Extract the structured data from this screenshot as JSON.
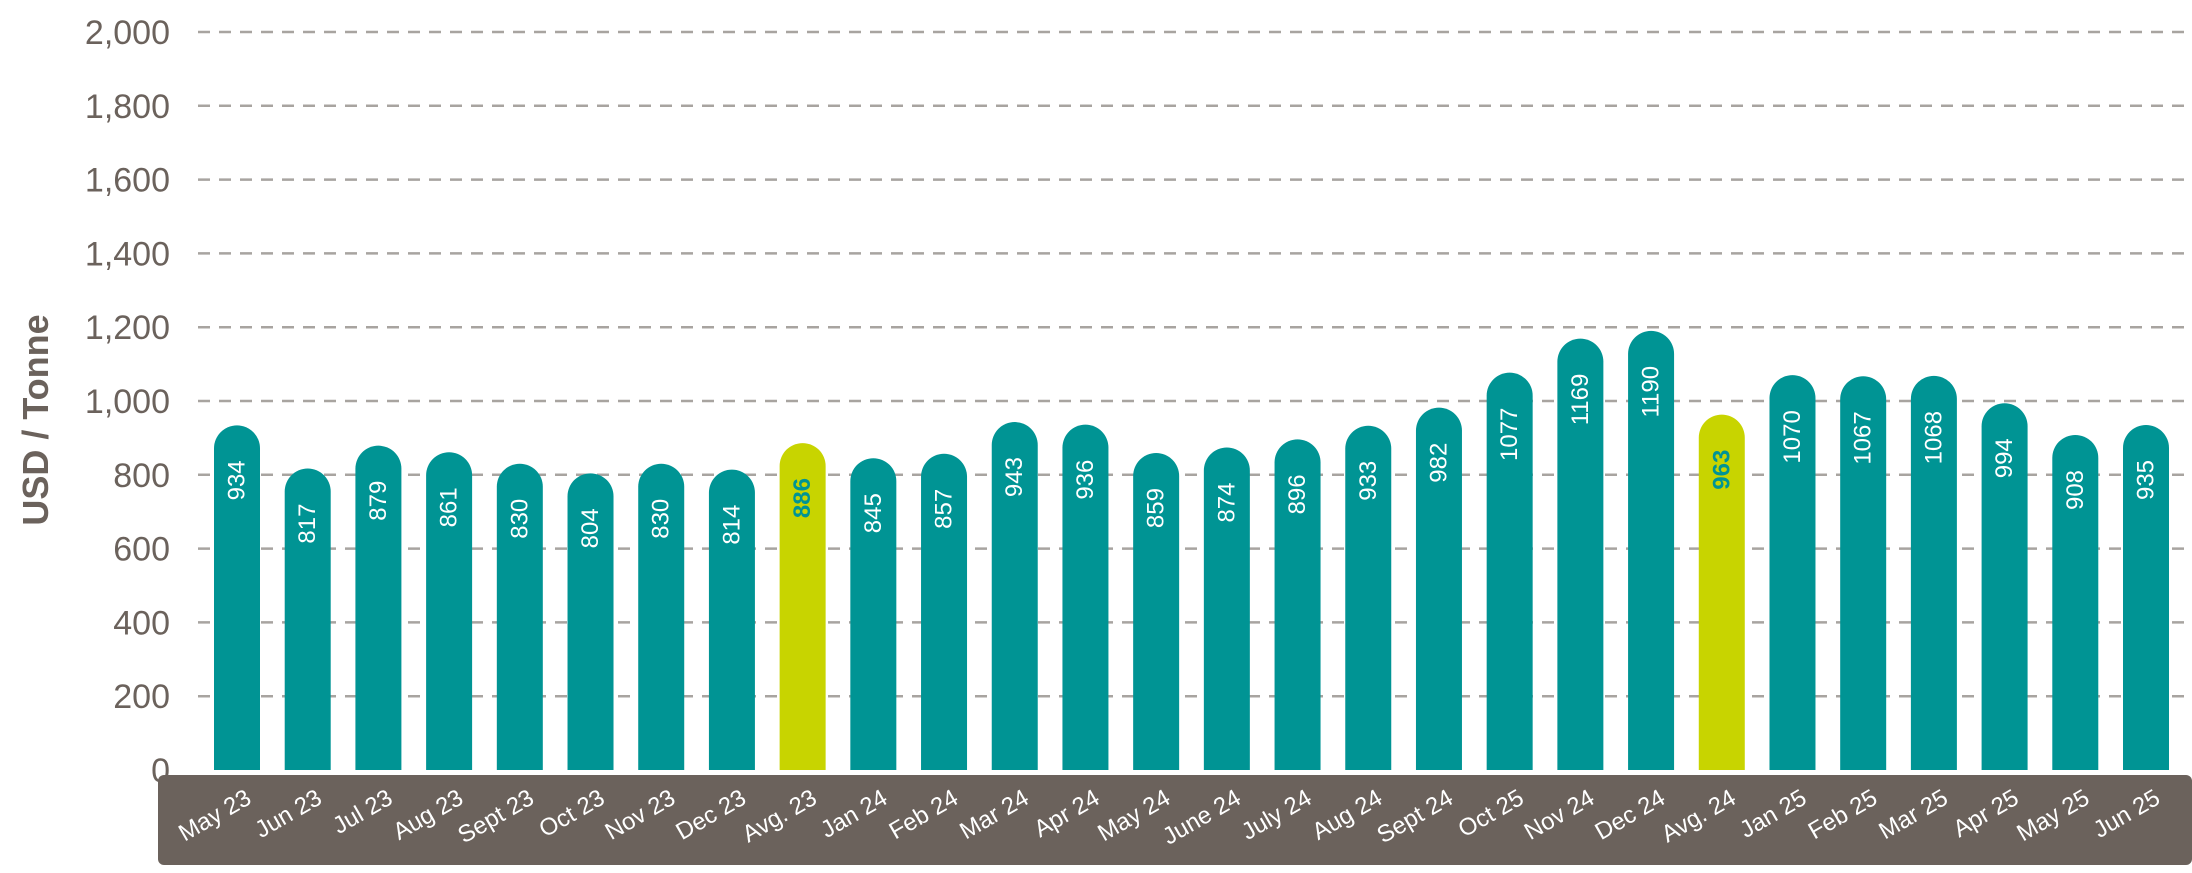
{
  "chart_data": {
    "type": "bar",
    "ylabel": "USD / Tonne",
    "ylim": [
      0,
      2000
    ],
    "yticks": [
      "0",
      "200",
      "400",
      "600",
      "800",
      "1,000",
      "1,200",
      "1,400",
      "1,600",
      "1,800",
      "2,000"
    ],
    "ytick_values": [
      0,
      200,
      400,
      600,
      800,
      1000,
      1200,
      1400,
      1600,
      1800,
      2000
    ],
    "grid": true,
    "categories": [
      "May 23",
      "Jun 23",
      "Jul 23",
      "Aug 23",
      "Sept 23",
      "Oct 23",
      "Nov 23",
      "Dec 23",
      "Avg. 23",
      "Jan 24",
      "Feb 24",
      "Mar 24",
      "Apr 24",
      "May 24",
      "June 24",
      "July 24",
      "Aug 24",
      "Sept 24",
      "Oct 25",
      "Nov 24",
      "Dec 24",
      "Avg. 24",
      "Jan 25",
      "Feb 25",
      "Mar 25",
      "Apr 25",
      "May 25",
      "Jun 25"
    ],
    "values": [
      934,
      817,
      879,
      861,
      830,
      804,
      830,
      814,
      886,
      845,
      857,
      943,
      936,
      859,
      874,
      896,
      933,
      982,
      1077,
      1169,
      1190,
      963,
      1070,
      1067,
      1068,
      994,
      908,
      935
    ],
    "highlight": [
      false,
      false,
      false,
      false,
      false,
      false,
      false,
      false,
      true,
      false,
      false,
      false,
      false,
      false,
      false,
      false,
      false,
      false,
      false,
      false,
      false,
      true,
      false,
      false,
      false,
      false,
      false,
      false
    ],
    "colors": {
      "bar": "#009494",
      "highlight": "#c8d400",
      "highlight_text": "#009494",
      "label": "#ffffff",
      "axis_band": "#6b625c",
      "grid": "#a8a4a0",
      "tick_text": "#6b625c"
    }
  }
}
